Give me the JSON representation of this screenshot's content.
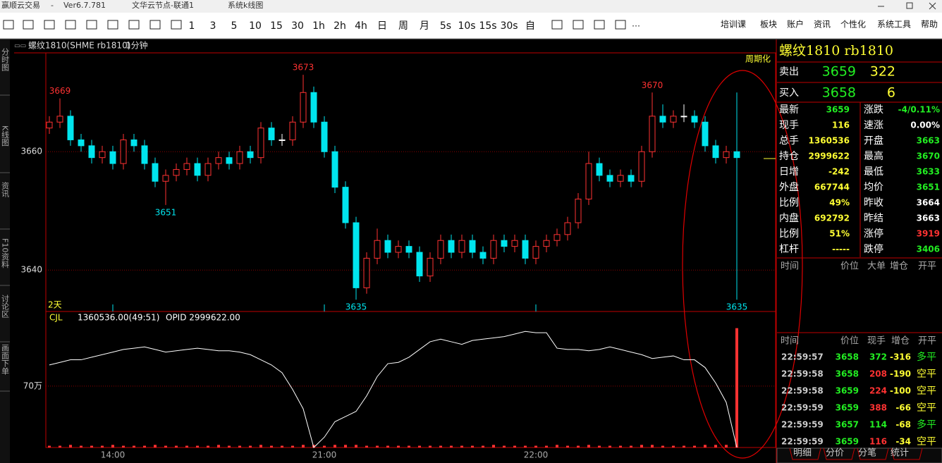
{
  "window": {
    "app": "赢顺云交易",
    "version": "Ver6.7.781",
    "node": "文华云节点-联通1",
    "view": "系统k线图"
  },
  "toolbar": {
    "periods": [
      "1",
      "3",
      "5",
      "10",
      "15",
      "30",
      "1h",
      "2h",
      "4h",
      "日",
      "周",
      "月",
      "5s",
      "10s",
      "15s",
      "30s",
      "自"
    ],
    "menu": [
      "培训课",
      "板块",
      "账户",
      "资讯",
      "个性化",
      "系统工具",
      "帮助"
    ]
  },
  "side_tabs": [
    "分时图",
    "K线图",
    "资讯",
    "F10资料",
    "讨论区",
    "画面下单"
  ],
  "chart_data": {
    "type": "candlestick",
    "title": "螺纹1810(SHME rb1810)",
    "period": "1分钟",
    "corner_label": "周期化",
    "span_label": "2天",
    "up_color": "#ff3232",
    "down_color": "#00e5ee",
    "doji_color": "#ffffff",
    "grid": true,
    "ylim": [
      3633,
      3676.7
    ],
    "yticks": [
      3640,
      3660
    ],
    "candles": [
      [
        3664,
        3666,
        3663,
        3665
      ],
      [
        3665,
        3669,
        3664,
        3666
      ],
      [
        3666,
        3667,
        3661,
        3662
      ],
      [
        3662,
        3663,
        3660,
        3661
      ],
      [
        3661,
        3662,
        3658,
        3659
      ],
      [
        3659,
        3661,
        3658,
        3660
      ],
      [
        3660,
        3661,
        3657,
        3658
      ],
      [
        3658,
        3663,
        3657,
        3662
      ],
      [
        3662,
        3663,
        3660,
        3661
      ],
      [
        3661,
        3662,
        3657,
        3658
      ],
      [
        3658,
        3659,
        3654,
        3655
      ],
      [
        3655,
        3657,
        3651,
        3656
      ],
      [
        3656,
        3658,
        3655,
        3657
      ],
      [
        3657,
        3659,
        3656,
        3658
      ],
      [
        3658,
        3659,
        3655,
        3656
      ],
      [
        3656,
        3659,
        3655,
        3658
      ],
      [
        3658,
        3660,
        3657,
        3659
      ],
      [
        3659,
        3660,
        3657,
        3658
      ],
      [
        3658,
        3661,
        3657,
        3660
      ],
      [
        3660,
        3661,
        3658,
        3659
      ],
      [
        3659,
        3665,
        3658,
        3664
      ],
      [
        3664,
        3665,
        3661,
        3662
      ],
      [
        3662,
        3663,
        3661,
        3662
      ],
      [
        3662,
        3666,
        3661,
        3665
      ],
      [
        3665,
        3673,
        3664,
        3670
      ],
      [
        3670,
        3671,
        3664,
        3665
      ],
      [
        3665,
        3666,
        3659,
        3660
      ],
      [
        3660,
        3661,
        3653,
        3654
      ],
      [
        3654,
        3655,
        3647,
        3648
      ],
      [
        3648,
        3649,
        3635,
        3637
      ],
      [
        3637,
        3643,
        3636,
        3642
      ],
      [
        3642,
        3647,
        3641,
        3645
      ],
      [
        3645,
        3646,
        3642,
        3643
      ],
      [
        3643,
        3645,
        3642,
        3644
      ],
      [
        3644,
        3645,
        3642,
        3643
      ],
      [
        3643,
        3644,
        3638,
        3639
      ],
      [
        3639,
        3643,
        3638,
        3642
      ],
      [
        3642,
        3646,
        3641,
        3645
      ],
      [
        3645,
        3646,
        3642,
        3643
      ],
      [
        3643,
        3646,
        3642,
        3645
      ],
      [
        3645,
        3646,
        3642,
        3643
      ],
      [
        3643,
        3644,
        3641,
        3642
      ],
      [
        3642,
        3646,
        3641,
        3645
      ],
      [
        3645,
        3646,
        3643,
        3644
      ],
      [
        3644,
        3646,
        3643,
        3645
      ],
      [
        3645,
        3646,
        3641,
        3642
      ],
      [
        3642,
        3645,
        3641,
        3644
      ],
      [
        3644,
        3646,
        3643,
        3645
      ],
      [
        3645,
        3647,
        3644,
        3646
      ],
      [
        3646,
        3649,
        3645,
        3648
      ],
      [
        3648,
        3653,
        3647,
        3652
      ],
      [
        3652,
        3660,
        3651,
        3658
      ],
      [
        3658,
        3659,
        3655,
        3656
      ],
      [
        3656,
        3657,
        3654,
        3655
      ],
      [
        3655,
        3657,
        3654,
        3656
      ],
      [
        3656,
        3657,
        3654,
        3655
      ],
      [
        3655,
        3661,
        3654,
        3660
      ],
      [
        3660,
        3670,
        3659,
        3666
      ],
      [
        3666,
        3668,
        3664,
        3665
      ],
      [
        3665,
        3667,
        3664,
        3666
      ],
      [
        3666,
        3668,
        3665,
        3666
      ],
      [
        3666,
        3667,
        3664,
        3665
      ],
      [
        3665,
        3666,
        3660,
        3661
      ],
      [
        3661,
        3662,
        3658,
        3659
      ],
      [
        3659,
        3661,
        3658,
        3660
      ],
      [
        3660,
        3670,
        3635,
        3659
      ]
    ],
    "annotations": [
      3669,
      3651,
      3673,
      3635,
      3670,
      3635
    ],
    "categories": [
      null,
      null,
      null,
      null,
      null,
      null,
      "14:00",
      null,
      null,
      null,
      null,
      null,
      null,
      null,
      null,
      null,
      null,
      null,
      null,
      null,
      null,
      null,
      null,
      null,
      null,
      null,
      "21:00",
      null,
      null,
      null,
      null,
      null,
      null,
      null,
      null,
      null,
      null,
      null,
      null,
      null,
      null,
      null,
      null,
      null,
      null,
      null,
      "22:00",
      null,
      null,
      null,
      null,
      null,
      null,
      null,
      null,
      null,
      null,
      null,
      null,
      null,
      null,
      null,
      null,
      null,
      null,
      null
    ],
    "lower": {
      "indicator": "CJL",
      "volume_text": "1360536.00(49:51)",
      "opid_text": "OPID 2999622.00",
      "vlim": [
        0,
        155
      ],
      "vticks": [
        {
          "value": 70,
          "label": "70万"
        }
      ],
      "volume_color": "#ff3232",
      "volume": [
        2,
        2,
        3,
        2,
        2,
        2,
        3,
        2,
        2,
        2,
        3,
        2,
        2,
        2,
        2,
        2,
        3,
        2,
        2,
        2,
        3,
        2,
        2,
        2,
        3,
        3,
        2,
        3,
        3,
        3,
        2,
        2,
        2,
        2,
        2,
        2,
        2,
        2,
        2,
        2,
        2,
        2,
        3,
        2,
        2,
        2,
        2,
        2,
        3,
        2,
        2,
        3,
        2,
        2,
        2,
        2,
        3,
        3,
        2,
        2,
        2,
        2,
        3,
        3,
        3,
        136
      ],
      "opid_ylim": [
        0,
        100
      ],
      "opid_color": "#ffffff",
      "opid": [
        64,
        66,
        68,
        68,
        70,
        72,
        74,
        76,
        77,
        78,
        76,
        74,
        75,
        76,
        77,
        76,
        75,
        75,
        74,
        72,
        68,
        64,
        58,
        45,
        30,
        0,
        8,
        20,
        24,
        28,
        40,
        55,
        65,
        66,
        70,
        76,
        82,
        84,
        82,
        80,
        83,
        84,
        85,
        86,
        88,
        90,
        89,
        89,
        77,
        76,
        76,
        75,
        76,
        78,
        76,
        74,
        72,
        69,
        70,
        71,
        68,
        68,
        62,
        50,
        35,
        0
      ]
    }
  },
  "quote": {
    "title": "螺纹1810  rb1810",
    "ask": {
      "label": "卖出",
      "price": 3659,
      "size": 322
    },
    "bid": {
      "label": "买入",
      "price": 3658,
      "size": 6
    },
    "stats": [
      [
        {
          "label": "最新",
          "value": "3659",
          "color": "#22ee22"
        },
        {
          "label": "涨跌",
          "value": "-4/0.11%",
          "color": "#22ee22"
        }
      ],
      [
        {
          "label": "现手",
          "value": "116",
          "color": "#ffff33"
        },
        {
          "label": "速涨",
          "value": "0.00%",
          "color": "#ffffff"
        }
      ],
      [
        {
          "label": "总手",
          "value": "1360536",
          "color": "#ffff33"
        },
        {
          "label": "开盘",
          "value": "3663",
          "color": "#22ee22"
        }
      ],
      [
        {
          "label": "持仓",
          "value": "2999622",
          "color": "#ffff33"
        },
        {
          "label": "最高",
          "value": "3670",
          "color": "#22ee22"
        }
      ],
      [
        {
          "label": "日增",
          "value": "-242",
          "color": "#ffff33"
        },
        {
          "label": "最低",
          "value": "3633",
          "color": "#22ee22"
        }
      ],
      [
        {
          "label": "外盘",
          "value": "667744",
          "color": "#ffff33"
        },
        {
          "label": "均价",
          "value": "3651",
          "color": "#22ee22"
        }
      ],
      [
        {
          "label": "比例",
          "value": "49%",
          "color": "#ffff33"
        },
        {
          "label": "昨收",
          "value": "3664",
          "color": "#ffffff"
        }
      ],
      [
        {
          "label": "内盘",
          "value": "692792",
          "color": "#ffff33"
        },
        {
          "label": "昨结",
          "value": "3663",
          "color": "#ffffff"
        }
      ],
      [
        {
          "label": "比例",
          "value": "51%",
          "color": "#ffff33"
        },
        {
          "label": "涨停",
          "value": "3919",
          "color": "#ff3232"
        }
      ],
      [
        {
          "label": "杠杆",
          "value": "-----",
          "color": "#ffff33"
        },
        {
          "label": "跌停",
          "value": "3406",
          "color": "#22ee22"
        }
      ]
    ],
    "big_header": [
      "时间",
      "价位",
      "大单",
      "增仓",
      "开平"
    ]
  },
  "trades": {
    "header": [
      "时间",
      "价位",
      "现手",
      "增仓",
      "开平"
    ],
    "rows": [
      {
        "cells": [
          "22:59:57",
          "3658",
          "372",
          "-316",
          "多平"
        ],
        "hand_color": "#22ee22",
        "type_color": "#22ee22"
      },
      {
        "cells": [
          "22:59:58",
          "3658",
          "208",
          "-190",
          "空平"
        ],
        "hand_color": "#ff3232",
        "type_color": "#ffff33"
      },
      {
        "cells": [
          "22:59:58",
          "3659",
          "224",
          "-100",
          "空平"
        ],
        "hand_color": "#ff3232",
        "type_color": "#ffff33"
      },
      {
        "cells": [
          "22:59:59",
          "3659",
          "388",
          "-66",
          "空平"
        ],
        "hand_color": "#ff3232",
        "type_color": "#ffff33"
      },
      {
        "cells": [
          "22:59:59",
          "3657",
          "114",
          "-68",
          "多平"
        ],
        "hand_color": "#22ee22",
        "type_color": "#22ee22"
      },
      {
        "cells": [
          "22:59:59",
          "3659",
          "116",
          "-34",
          "空平"
        ],
        "hand_color": "#ff3232",
        "type_color": "#ffff33"
      }
    ]
  },
  "tabs": [
    "明细",
    "分价",
    "分笔",
    "统计"
  ]
}
